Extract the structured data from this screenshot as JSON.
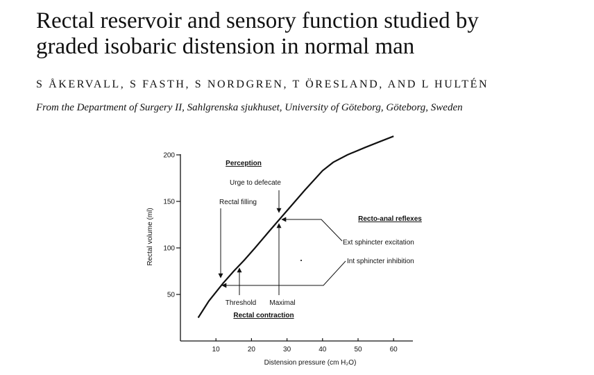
{
  "paper": {
    "title_line1": "Rectal reservoir and sensory function studied by",
    "title_line2": "graded isobaric distension in normal man",
    "authors": "S ÅKERVALL, S FASTH, S NORDGREN, T ÖRESLAND, AND L HULTÉN",
    "affiliation": "From the Department of Surgery II, Sahlgrenska sjukhuset, University of Göteborg, Göteborg, Sweden"
  },
  "chart_data": {
    "type": "line",
    "xlabel": "Distension pressure (cm H₂O)",
    "ylabel": "Rectal volume (ml)",
    "xlim": [
      0,
      65
    ],
    "ylim": [
      0,
      210
    ],
    "xticks": [
      10,
      20,
      30,
      40,
      50,
      60
    ],
    "yticks": [
      50,
      100,
      150,
      200
    ],
    "grid": false,
    "series": [
      {
        "x": [
          5,
          8,
          12,
          15,
          18,
          21,
          25,
          30,
          35,
          40,
          43,
          47,
          52,
          56,
          60
        ],
        "y": [
          25,
          43,
          62,
          75,
          87,
          100,
          118,
          140,
          162,
          183,
          192,
          200,
          208,
          214,
          220
        ]
      }
    ],
    "annotations": {
      "perception_heading": "Perception",
      "urge_label": "Urge to defecate",
      "filling_label": "Rectal filling",
      "reflex_heading": "Recto-anal reflexes",
      "ext_label": "Ext sphincter excitation",
      "int_label": "Int sphincter inhibition",
      "threshold_label": "Threshold",
      "maximal_label": "Maximal",
      "contraction_heading": "Rectal contraction"
    }
  }
}
